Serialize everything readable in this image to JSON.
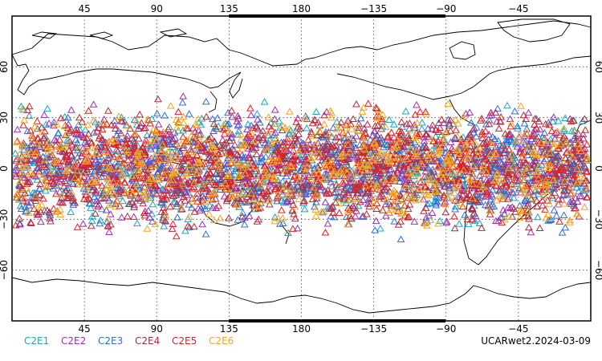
{
  "map": {
    "top_lon_labels": [
      "45",
      "90",
      "135",
      "180",
      "−135",
      "−90",
      "−45"
    ],
    "bottom_lon_labels": [
      "45",
      "90",
      "135",
      "180",
      "−135",
      "−90",
      "−45"
    ],
    "lat_labels": [
      "60",
      "30",
      "0",
      "−30",
      "−60"
    ],
    "lon_ticks": [
      45,
      90,
      135,
      180,
      225,
      270,
      315
    ],
    "lat_ticks": [
      60,
      30,
      0,
      -30,
      -60
    ],
    "lon_range": [
      0,
      360
    ],
    "lat_range": [
      -90,
      90
    ],
    "grid": "dotted",
    "marker": "open-triangle",
    "observation_lat_band": [
      -45,
      45
    ],
    "triangles_per_series": 700,
    "note": "Occultation observation locations plotted as open triangles, one color per satellite"
  },
  "legend": [
    {
      "name": "C2E1",
      "color": "#1aa6c8"
    },
    {
      "name": "C2E2",
      "color": "#9b2fb5"
    },
    {
      "name": "C2E3",
      "color": "#2f6fd6"
    },
    {
      "name": "C2E4",
      "color": "#b5283a"
    },
    {
      "name": "C2E5",
      "color": "#e0201f"
    },
    {
      "name": "C2E6",
      "color": "#f5a623"
    }
  ],
  "footer_stamp": "UCARwet2.2024-03-09"
}
